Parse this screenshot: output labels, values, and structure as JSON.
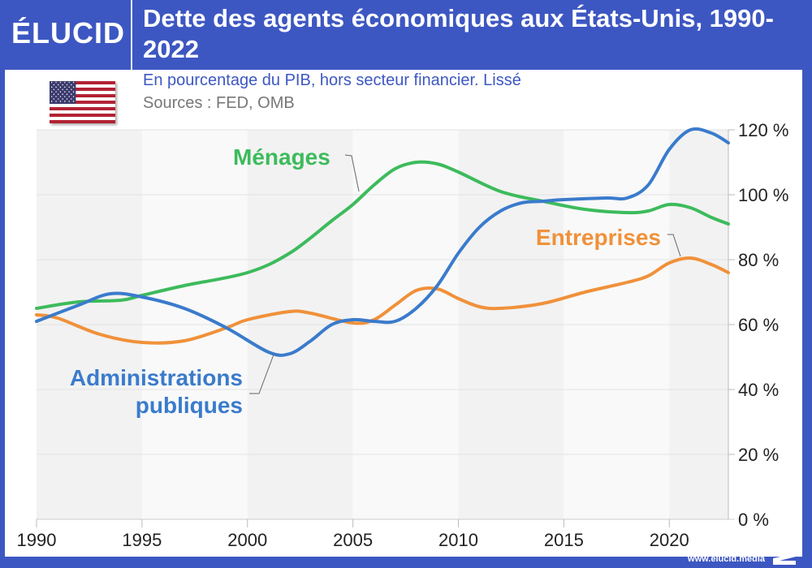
{
  "brand": {
    "logo": "ÉLUCID",
    "website": "www.elucid.media"
  },
  "header": {
    "title": "Dette des agents économiques aux États-Unis, 1990-2022",
    "subtitle": "En pourcentage du PIB, hors secteur financier. Lissé",
    "sources": "Sources : FED, OMB",
    "flag_icon": "us-flag-icon"
  },
  "colors": {
    "brand": "#3d57c2",
    "menages": "#3dbb5c",
    "administrations": "#3a7bcc",
    "entreprises": "#f0913a"
  },
  "chart_data": {
    "type": "line",
    "title": "Dette des agents économiques aux États-Unis, 1990-2022",
    "subtitle": "En pourcentage du PIB, hors secteur financier. Lissé",
    "xlabel": "",
    "ylabel": "",
    "xlim": [
      1990,
      2022.8
    ],
    "ylim": [
      0,
      120
    ],
    "x_ticks": [
      1990,
      1995,
      2000,
      2005,
      2010,
      2015,
      2020
    ],
    "y_ticks": [
      0,
      20,
      40,
      60,
      80,
      100,
      120
    ],
    "y_tick_labels": [
      "0 %",
      "20 %",
      "40 %",
      "60 %",
      "80 %",
      "100 %",
      "120 %"
    ],
    "y_axis_side": "right",
    "grid": true,
    "series": [
      {
        "name": "Ménages",
        "label": "Ménages",
        "color": "#3dbb5c",
        "x": [
          1990,
          1992,
          1994,
          1995,
          1997,
          2000,
          2002,
          2004,
          2005,
          2006,
          2007,
          2008,
          2009,
          2010,
          2012,
          2014,
          2016,
          2018,
          2019,
          2020,
          2021,
          2022,
          2022.8
        ],
        "values": [
          65,
          67,
          67.5,
          69,
          72,
          76,
          82,
          92,
          97,
          103,
          108,
          110,
          109.5,
          107,
          101,
          98,
          95.5,
          94.5,
          95,
          97,
          96,
          93,
          91
        ]
      },
      {
        "name": "Administrations publiques",
        "label": "Administrations publiques",
        "color": "#3a7bcc",
        "x": [
          1990,
          1992,
          1993.5,
          1995,
          1997,
          1999,
          2001,
          2002,
          2003,
          2004,
          2005,
          2006,
          2007,
          2008,
          2009,
          2010,
          2011,
          2012,
          2013,
          2014,
          2015,
          2017,
          2018,
          2019,
          2020,
          2021,
          2022,
          2022.8
        ],
        "values": [
          61,
          66,
          69.5,
          68.5,
          65,
          59,
          51.5,
          51,
          55,
          60,
          61.5,
          61,
          61,
          65,
          72,
          82,
          90,
          95,
          97.5,
          98,
          98.5,
          99,
          99,
          103,
          114,
          120,
          119,
          116
        ]
      },
      {
        "name": "Entreprises",
        "label": "Entreprises",
        "color": "#f0913a",
        "x": [
          1990,
          1991,
          1993,
          1995,
          1997,
          1999,
          2000,
          2002,
          2003,
          2005,
          2006,
          2007,
          2008,
          2009,
          2010,
          2011,
          2012,
          2014,
          2016,
          2018,
          2019,
          2020,
          2021,
          2022,
          2022.8
        ],
        "values": [
          63,
          62,
          57,
          54.5,
          55,
          59,
          61.5,
          64,
          63.5,
          60.5,
          61.5,
          66,
          70.5,
          71,
          68,
          65.5,
          65,
          66.5,
          70,
          73,
          75,
          79,
          80.5,
          78.5,
          76
        ]
      }
    ]
  }
}
